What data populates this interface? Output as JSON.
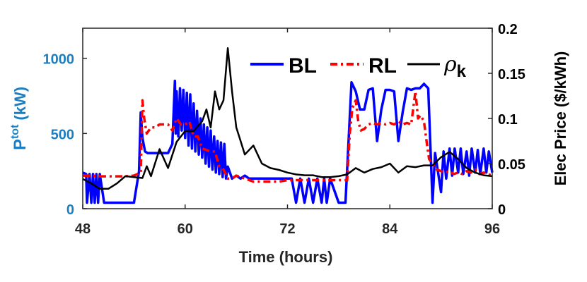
{
  "chart_data": {
    "type": "line",
    "xlabel": "Time (hours)",
    "xlim": [
      48,
      96
    ],
    "xticks": [
      48,
      60,
      72,
      84,
      96
    ],
    "y_left": {
      "label_main": "P",
      "label_sup": "tot",
      "label_unit": "(kW)",
      "lim": [
        0,
        1200
      ],
      "ticks": [
        0,
        500,
        1000
      ],
      "color": "#1a7fc2"
    },
    "y_right": {
      "label": "Elec Price ($/kWh)",
      "lim": [
        0,
        0.2
      ],
      "ticks": [
        0,
        0.05,
        0.1,
        0.15,
        0.2
      ],
      "tick_labels": [
        "0",
        "0.05",
        "0.1",
        "0.15",
        "0.2"
      ],
      "color": "#000000"
    },
    "legend": {
      "placement": "top-right"
    },
    "series": [
      {
        "name": "BL",
        "axis": "left",
        "color": "#0000ff",
        "style": "solid",
        "x": [
          48,
          48.4,
          48.5,
          48.8,
          49,
          49.2,
          49.4,
          49.6,
          49.8,
          50,
          50.5,
          51,
          52,
          53,
          54,
          54.6,
          54.8,
          55,
          55.3,
          55.6,
          56,
          57,
          58,
          58.5,
          58.8,
          58.9,
          59,
          59.2,
          59.4,
          59.6,
          59.8,
          60,
          60.2,
          60.4,
          60.6,
          60.8,
          61,
          61.2,
          61.4,
          61.6,
          61.8,
          62,
          62.2,
          62.4,
          62.6,
          62.8,
          63,
          63.2,
          63.4,
          63.6,
          63.8,
          64,
          64.2,
          64.4,
          64.6,
          64.8,
          65,
          65.5,
          66,
          66.5,
          67,
          67.5,
          68,
          68.5,
          69,
          70,
          71,
          72,
          72.5,
          73,
          73.5,
          74,
          74.5,
          75,
          75.5,
          76,
          76.3,
          76.6,
          77,
          78,
          78.8,
          79.2,
          79.5,
          80,
          80.5,
          81,
          81.5,
          82,
          82.5,
          83,
          83.5,
          84,
          84.5,
          85,
          85.5,
          86,
          86.5,
          87,
          87.5,
          88,
          88.5,
          89,
          89.3,
          89.6,
          90,
          90.3,
          90.6,
          91,
          91.3,
          91.6,
          92,
          92.3,
          92.6,
          93,
          93.3,
          93.6,
          94,
          94.3,
          94.6,
          95,
          95.3,
          95.6,
          96
        ],
        "y": [
          240,
          230,
          40,
          230,
          40,
          230,
          40,
          230,
          40,
          230,
          40,
          40,
          40,
          40,
          40,
          250,
          640,
          470,
          380,
          370,
          370,
          370,
          370,
          430,
          850,
          500,
          780,
          480,
          800,
          520,
          790,
          470,
          770,
          420,
          760,
          400,
          700,
          380,
          650,
          360,
          600,
          340,
          560,
          300,
          540,
          280,
          520,
          260,
          480,
          240,
          450,
          230,
          440,
          210,
          430,
          200,
          280,
          200,
          220,
          200,
          220,
          200,
          200,
          200,
          200,
          200,
          200,
          200,
          200,
          40,
          200,
          40,
          200,
          40,
          200,
          40,
          200,
          40,
          200,
          40,
          40,
          500,
          840,
          780,
          660,
          660,
          790,
          800,
          450,
          660,
          790,
          790,
          780,
          450,
          640,
          800,
          790,
          800,
          800,
          830,
          800,
          40,
          370,
          260,
          110,
          380,
          200,
          400,
          220,
          400,
          240,
          400,
          230,
          380,
          220,
          400,
          240,
          390,
          230,
          400,
          240,
          380,
          240
        ]
      },
      {
        "name": "RL",
        "axis": "left",
        "color": "#ff0000",
        "style": "dashdot",
        "x": [
          48,
          49,
          50,
          51,
          52,
          53,
          54,
          54.8,
          55,
          55.2,
          55.5,
          56,
          56.5,
          57,
          57.5,
          58,
          58.5,
          59,
          59.5,
          60,
          60.5,
          61,
          61.5,
          62,
          62.5,
          63,
          63.5,
          64,
          64.5,
          65,
          65.5,
          66,
          67,
          68,
          69,
          70,
          71,
          72,
          73,
          74,
          75,
          76,
          77,
          78,
          79,
          79.3,
          79.6,
          80,
          80.3,
          80.6,
          81,
          81.5,
          82,
          82.5,
          83,
          83.5,
          84,
          84.5,
          85,
          85.5,
          86,
          86.5,
          87,
          87.3,
          87.6,
          88,
          88.3,
          88.6,
          89,
          89.5,
          90,
          90.5,
          91,
          91.5,
          92,
          92.5,
          93,
          93.5,
          94,
          94.5,
          95,
          95.5,
          96
        ],
        "y": [
          220,
          220,
          215,
          215,
          215,
          215,
          220,
          240,
          720,
          600,
          500,
          540,
          540,
          560,
          560,
          560,
          520,
          600,
          560,
          560,
          580,
          480,
          480,
          400,
          390,
          380,
          380,
          280,
          260,
          200,
          200,
          220,
          200,
          180,
          180,
          180,
          180,
          190,
          190,
          190,
          190,
          190,
          190,
          190,
          190,
          500,
          670,
          720,
          580,
          520,
          530,
          560,
          570,
          560,
          570,
          560,
          570,
          560,
          580,
          560,
          570,
          560,
          780,
          600,
          620,
          580,
          450,
          330,
          300,
          260,
          250,
          240,
          250,
          230,
          240,
          230,
          250,
          240,
          260,
          230,
          240,
          230,
          220
        ]
      },
      {
        "name": "ρ_k",
        "axis": "right",
        "color": "#000000",
        "style": "solid",
        "x": [
          48,
          49,
          50,
          51,
          52,
          53,
          54,
          55,
          55.5,
          56,
          57,
          58,
          59,
          60,
          61,
          62,
          62.5,
          63,
          63.5,
          64,
          64.5,
          65,
          65.5,
          66,
          66.5,
          67,
          67.5,
          68,
          69,
          70,
          71,
          72,
          73,
          74,
          75,
          76,
          77,
          78,
          79,
          80,
          81,
          82,
          83,
          84,
          85,
          86,
          87,
          88,
          89,
          90,
          91,
          92,
          93,
          94,
          95,
          96
        ],
        "y": [
          0.033,
          0.028,
          0.022,
          0.022,
          0.028,
          0.036,
          0.035,
          0.034,
          0.047,
          0.036,
          0.066,
          0.045,
          0.074,
          0.086,
          0.086,
          0.097,
          0.11,
          0.09,
          0.13,
          0.11,
          0.12,
          0.178,
          0.13,
          0.09,
          0.075,
          0.06,
          0.065,
          0.07,
          0.05,
          0.045,
          0.043,
          0.04,
          0.038,
          0.037,
          0.037,
          0.035,
          0.035,
          0.036,
          0.038,
          0.045,
          0.04,
          0.044,
          0.046,
          0.05,
          0.04,
          0.047,
          0.046,
          0.048,
          0.048,
          0.057,
          0.063,
          0.055,
          0.045,
          0.04,
          0.037,
          0.036
        ]
      }
    ]
  }
}
